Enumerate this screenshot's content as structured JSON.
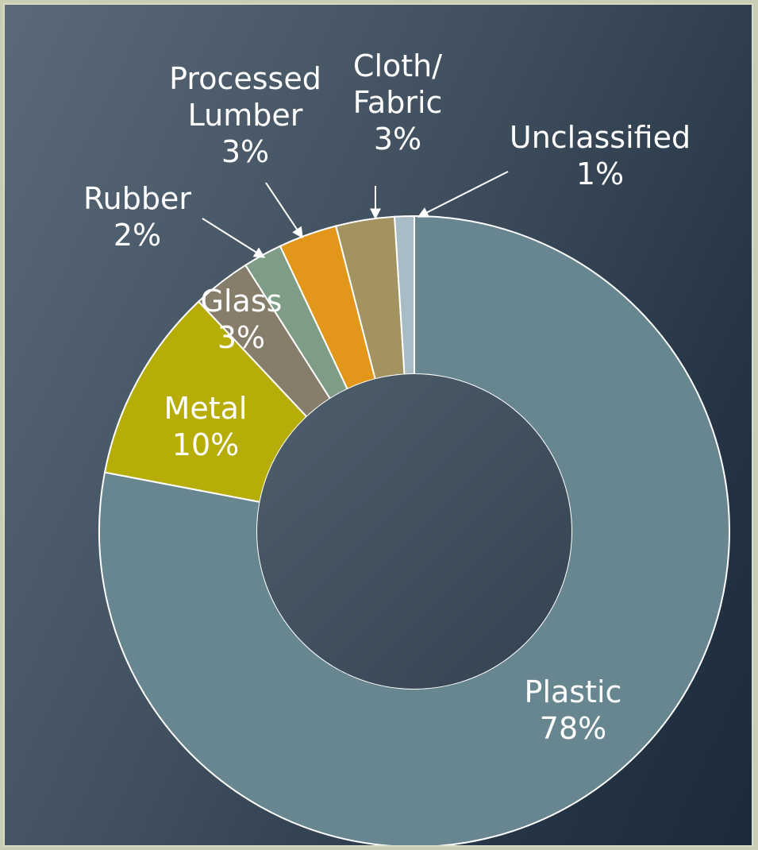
{
  "chart_data": {
    "type": "pie",
    "variant": "donut",
    "title": "",
    "legend": "none",
    "grid": false,
    "slices": [
      {
        "label_lines": [
          "Plastic",
          "78%"
        ],
        "value": 78,
        "color": "#68868f",
        "label_position": "inside"
      },
      {
        "label_lines": [
          "Metal",
          "10%"
        ],
        "value": 10,
        "color": "#b7ad08",
        "label_position": "inside"
      },
      {
        "label_lines": [
          "Glass",
          "3%"
        ],
        "value": 3,
        "color": "#867d6a",
        "label_position": "inside"
      },
      {
        "label_lines": [
          "Rubber",
          "2%"
        ],
        "value": 2,
        "color": "#7e9c86",
        "label_position": "outside"
      },
      {
        "label_lines": [
          "Processed",
          "Lumber",
          "3%"
        ],
        "value": 3,
        "color": "#e2961a",
        "label_position": "outside"
      },
      {
        "label_lines": [
          "Cloth/",
          "Fabric",
          "3%"
        ],
        "value": 3,
        "color": "#a39361",
        "label_position": "outside"
      },
      {
        "label_lines": [
          "Unclassified",
          "1%"
        ],
        "value": 1,
        "color": "#a7bcc4",
        "label_position": "outside"
      }
    ]
  }
}
